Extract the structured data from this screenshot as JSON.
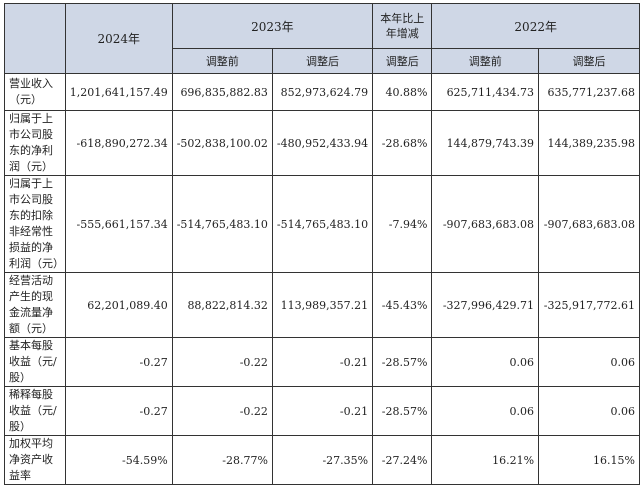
{
  "header": {
    "year_2024": "2024年",
    "year_2023": "2023年",
    "change": "本年比上年增减",
    "year_2022": "2022年",
    "before_adj": "调整前",
    "after_adj": "调整后",
    "after_adj_change": "调整后",
    "before_adj_2022": "调整前",
    "after_adj_2022": "调整后"
  },
  "rows": [
    {
      "label": "营业收入（元）",
      "v2024": "1,201,641,157.49",
      "v2023_before": "696,835,882.83",
      "v2023_after": "852,973,624.79",
      "change": "40.88%",
      "v2022_before": "625,711,434.73",
      "v2022_after": "635,771,237.68"
    },
    {
      "label": "归属于上市公司股东的净利润（元）",
      "v2024": "-618,890,272.34",
      "v2023_before": "-502,838,100.02",
      "v2023_after": "-480,952,433.94",
      "change": "-28.68%",
      "v2022_before": "144,879,743.39",
      "v2022_after": "144,389,235.98"
    },
    {
      "label": "归属于上市公司股东的扣除非经常性损益的净利润（元）",
      "v2024": "-555,661,157.34",
      "v2023_before": "-514,765,483.10",
      "v2023_after": "-514,765,483.10",
      "change": "-7.94%",
      "v2022_before": "-907,683,683.08",
      "v2022_after": "-907,683,683.08"
    },
    {
      "label": "经营活动产生的现金流量净额（元）",
      "v2024": "62,201,089.40",
      "v2023_before": "88,822,814.32",
      "v2023_after": "113,989,357.21",
      "change": "-45.43%",
      "v2022_before": "-327,996,429.71",
      "v2022_after": "-325,917,772.61"
    },
    {
      "label": "基本每股收益（元/股）",
      "v2024": "-0.27",
      "v2023_before": "-0.22",
      "v2023_after": "-0.21",
      "change": "-28.57%",
      "v2022_before": "0.06",
      "v2022_after": "0.06"
    },
    {
      "label": "稀释每股收益（元/股）",
      "v2024": "-0.27",
      "v2023_before": "-0.22",
      "v2023_after": "-0.21",
      "change": "-28.57%",
      "v2022_before": "0.06",
      "v2022_after": "0.06"
    },
    {
      "label": "加权平均净资产收益率",
      "v2024": "-54.59%",
      "v2023_before": "-28.77%",
      "v2023_after": "-27.35%",
      "change": "-27.24%",
      "v2022_before": "16.21%",
      "v2022_after": "16.15%"
    }
  ]
}
